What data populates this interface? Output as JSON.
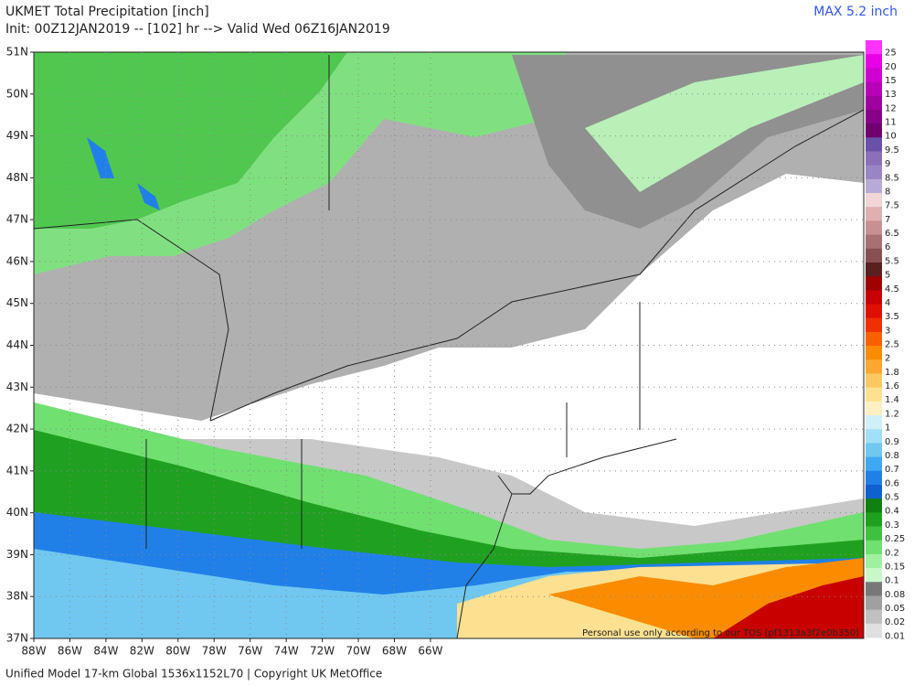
{
  "header": {
    "title": "UKMET Total Precipitation [inch]",
    "subtitle": "Init: 00Z12JAN2019 -- [102] hr --> Valid Wed 06Z16JAN2019",
    "max_label": "MAX 5.2 inch"
  },
  "latitude_labels": [
    "51N",
    "50N",
    "49N",
    "48N",
    "47N",
    "46N",
    "45N",
    "44N",
    "43N",
    "42N",
    "41N",
    "40N",
    "39N",
    "38N",
    "37N"
  ],
  "longitude_labels": [
    "88W",
    "86W",
    "84W",
    "82W",
    "80W",
    "78W",
    "76W",
    "74W",
    "72W",
    "70W",
    "68W",
    "66W"
  ],
  "colorbar": {
    "labels": [
      "25",
      "20",
      "15",
      "13",
      "12",
      "11",
      "10",
      "9.5",
      "9",
      "8.5",
      "8",
      "7.5",
      "7",
      "6.5",
      "6",
      "5.5",
      "5",
      "4.5",
      "4",
      "3.5",
      "3",
      "2.5",
      "2",
      "1.8",
      "1.6",
      "1.4",
      "1.2",
      "1",
      "0.9",
      "0.8",
      "0.7",
      "0.6",
      "0.5",
      "0.4",
      "0.3",
      "0.25",
      "0.2",
      "0.15",
      "0.1",
      "0.08",
      "0.05",
      "0.02",
      "0.01"
    ],
    "colors": [
      "#ff33ff",
      "#e800e8",
      "#d000d0",
      "#b800b8",
      "#a000a0",
      "#880088",
      "#700070",
      "#6a50a8",
      "#8a70b8",
      "#9a85c4",
      "#b8aad6",
      "#f2d6d6",
      "#e0b0b0",
      "#c89090",
      "#a87070",
      "#885050",
      "#5a2020",
      "#a00000",
      "#c80000",
      "#e01000",
      "#f03000",
      "#f86000",
      "#fb8c00",
      "#fca830",
      "#fdc860",
      "#fde090",
      "#fef0c0",
      "#d0f0f8",
      "#a0e0f8",
      "#70c8f0",
      "#40a8f0",
      "#2080e8",
      "#1060d0",
      "#108010",
      "#20a020",
      "#40c040",
      "#70e070",
      "#a0f0a0",
      "#c8f8c8",
      "#787878",
      "#a0a0a0",
      "#c0c0c0",
      "#e0e0e0"
    ]
  },
  "footer": "Unified Model 17-km Global 1536x1152L70 | Copyright UK MetOffice",
  "watermark": "Personal use only according to our TOS (pf1313a3f2e0b350)"
}
